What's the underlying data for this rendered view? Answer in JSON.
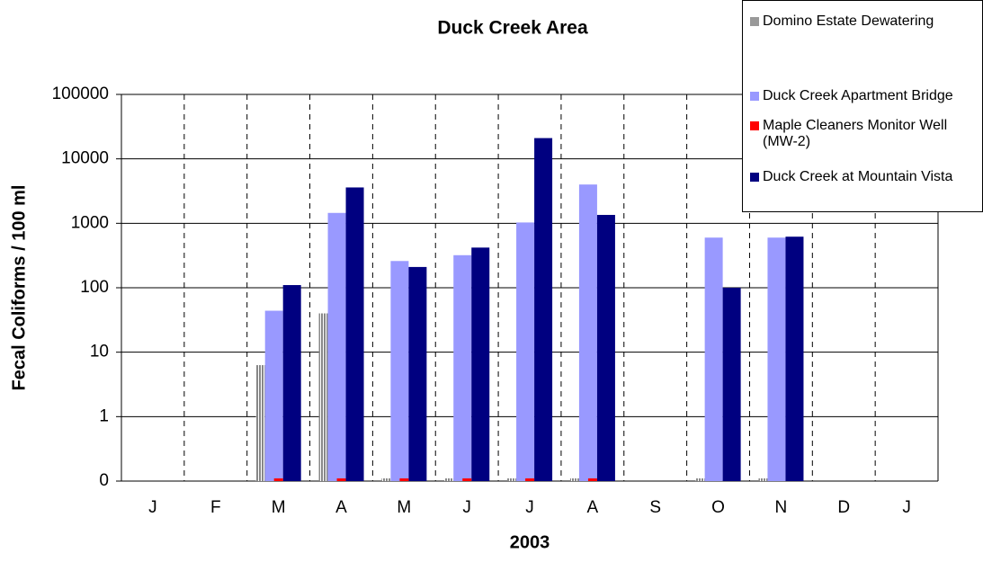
{
  "chart_data": {
    "type": "bar",
    "title": "Duck Creek Area",
    "x_label": "2003",
    "y_label": "Fecal Coliforms / 100 ml",
    "categories": [
      "J",
      "F",
      "M",
      "A",
      "M",
      "J",
      "J",
      "A",
      "S",
      "O",
      "N",
      "D",
      "J"
    ],
    "log_scale": true,
    "ylim": [
      0.1,
      100000
    ],
    "yticks": [
      {
        "value": 0.1,
        "label": "0"
      },
      1,
      10,
      100,
      1000,
      10000,
      100000
    ],
    "grid": true,
    "legend": "top-right",
    "series": [
      {
        "name": "Domino Estate Dewatering",
        "color": "#999999",
        "values": [
          null,
          null,
          6.3,
          40,
          0.11,
          0.11,
          0.11,
          0.11,
          null,
          0.11,
          0.11,
          null,
          null
        ]
      },
      {
        "name": "Duck Creek Apartment Bridge",
        "color": "#9999ff",
        "values": [
          null,
          null,
          44,
          1450,
          260,
          320,
          1030,
          4000,
          null,
          600,
          600,
          null,
          null
        ]
      },
      {
        "name": "Maple Cleaners Monitor Well (MW-2)",
        "color": "#ff0000",
        "values": [
          null,
          null,
          0.11,
          0.11,
          0.11,
          0.11,
          0.11,
          0.11,
          null,
          null,
          null,
          null,
          null
        ]
      },
      {
        "name": "Duck Creek at Mountain Vista",
        "color": "#000080",
        "values": [
          null,
          null,
          110,
          3600,
          210,
          420,
          21000,
          1350,
          null,
          100,
          620,
          null,
          null
        ]
      }
    ]
  }
}
